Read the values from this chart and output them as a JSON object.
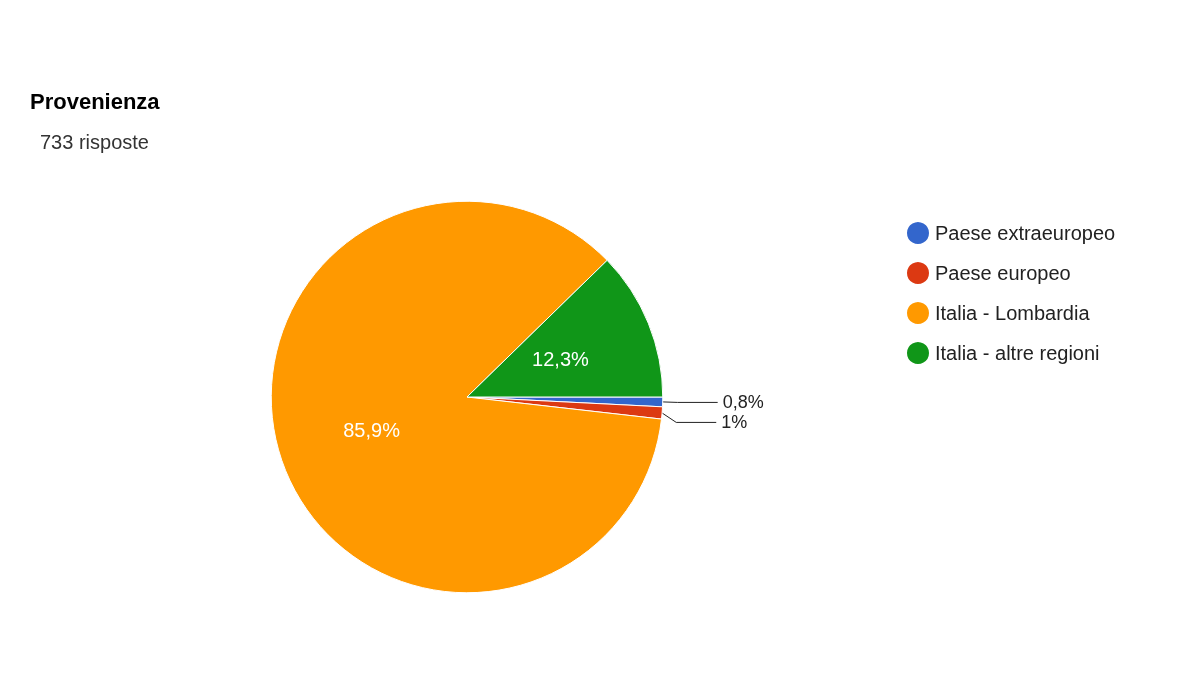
{
  "chart_data": {
    "type": "pie",
    "title": "Provenienza",
    "subtitle": "733 risposte",
    "categories": [
      "Paese extraeuropeo",
      "Paese europeo",
      "Italia - Lombardia",
      "Italia - altre regioni"
    ],
    "values": [
      0.8,
      1,
      85.9,
      12.3
    ],
    "colors": [
      "#3366cc",
      "#dc3912",
      "#ff9900",
      "#109618"
    ],
    "value_labels": [
      "0,8%",
      "1%",
      "85,9%",
      "12,3%"
    ],
    "legend": "right"
  }
}
